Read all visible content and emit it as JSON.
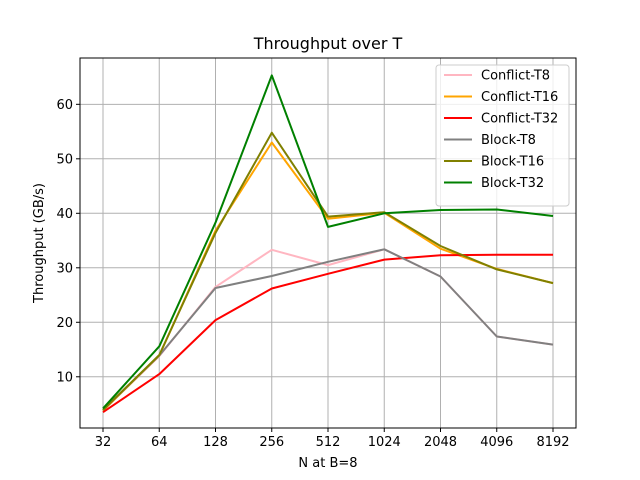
{
  "chart_data": {
    "type": "line",
    "title": "Throughput over T",
    "xlabel": "N at B=8",
    "ylabel": "Throughput (GB/s)",
    "categories": [
      "32",
      "64",
      "128",
      "256",
      "512",
      "1024",
      "2048",
      "4096",
      "8192"
    ],
    "ylim": [
      0.6,
      68.5
    ],
    "yticks": [
      10,
      20,
      30,
      40,
      50,
      60
    ],
    "grid": true,
    "legend_position": "top-right",
    "series": [
      {
        "name": "Conflict-T8",
        "color": "#ffb6c1",
        "values": [
          3.8,
          13.8,
          26.5,
          33.3,
          30.5,
          33.4,
          28.4,
          17.4,
          15.9
        ]
      },
      {
        "name": "Conflict-T16",
        "color": "#ffa500",
        "values": [
          3.8,
          13.9,
          36.8,
          53.0,
          39.0,
          40.1,
          33.5,
          29.8,
          27.2
        ]
      },
      {
        "name": "Conflict-T32",
        "color": "#ff0000",
        "values": [
          3.5,
          10.5,
          20.4,
          26.2,
          28.9,
          31.5,
          32.3,
          32.4,
          32.4
        ]
      },
      {
        "name": "Block-T8",
        "color": "#808080",
        "values": [
          3.9,
          13.9,
          26.3,
          28.5,
          31.1,
          33.4,
          28.4,
          17.4,
          15.9
        ]
      },
      {
        "name": "Block-T16",
        "color": "#808000",
        "values": [
          3.9,
          14.0,
          36.4,
          54.8,
          39.4,
          40.2,
          34.0,
          29.7,
          27.2
        ]
      },
      {
        "name": "Block-T32",
        "color": "#008000",
        "values": [
          4.2,
          15.6,
          38.3,
          65.3,
          37.5,
          40.0,
          40.6,
          40.7,
          39.5
        ]
      }
    ]
  }
}
